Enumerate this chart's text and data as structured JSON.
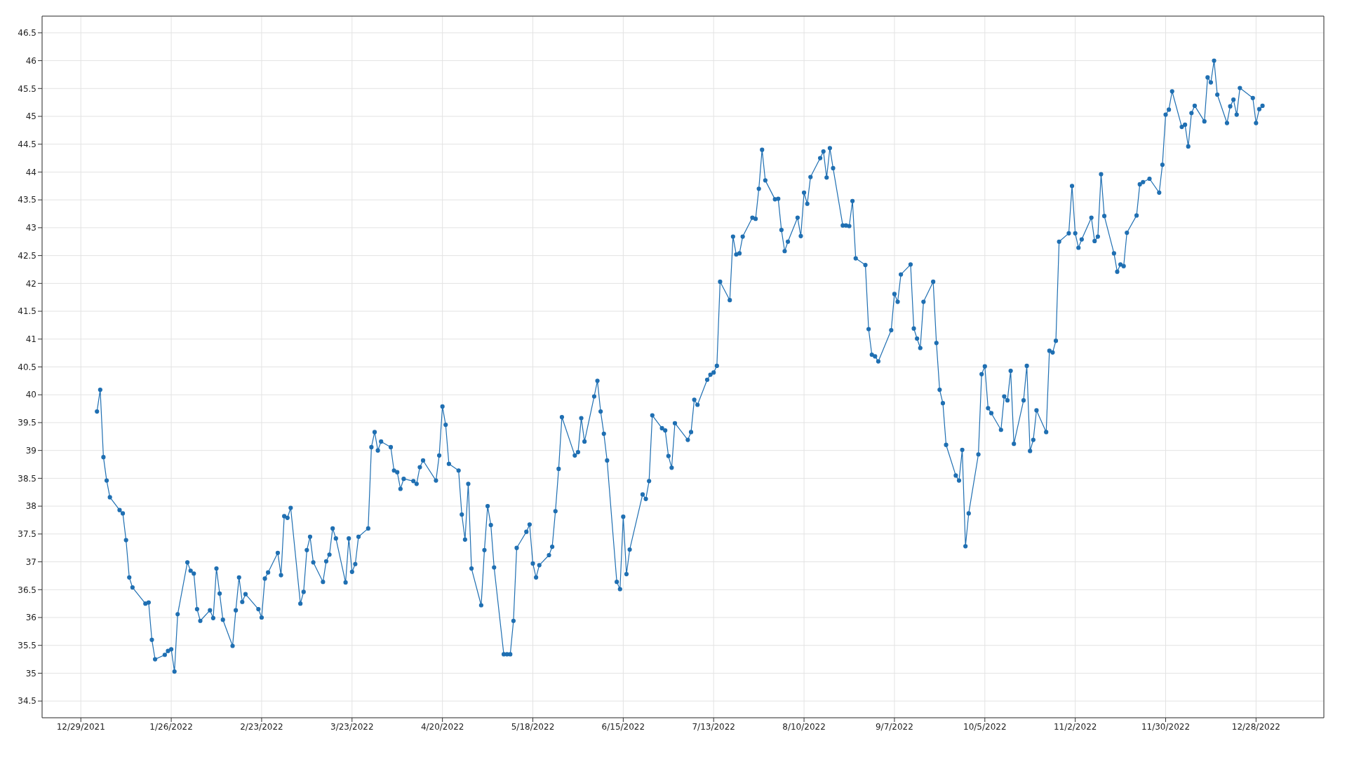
{
  "chart_data": {
    "type": "line",
    "x": [
      "2022-01-03",
      "2022-01-04",
      "2022-01-05",
      "2022-01-06",
      "2022-01-07",
      "2022-01-10",
      "2022-01-11",
      "2022-01-12",
      "2022-01-13",
      "2022-01-14",
      "2022-01-18",
      "2022-01-19",
      "2022-01-20",
      "2022-01-21",
      "2022-01-24",
      "2022-01-25",
      "2022-01-26",
      "2022-01-27",
      "2022-01-28",
      "2022-01-31",
      "2022-02-01",
      "2022-02-02",
      "2022-02-03",
      "2022-02-04",
      "2022-02-07",
      "2022-02-08",
      "2022-02-09",
      "2022-02-10",
      "2022-02-11",
      "2022-02-14",
      "2022-02-15",
      "2022-02-16",
      "2022-02-17",
      "2022-02-18",
      "2022-02-22",
      "2022-02-23",
      "2022-02-24",
      "2022-02-25",
      "2022-02-28",
      "2022-03-01",
      "2022-03-02",
      "2022-03-03",
      "2022-03-04",
      "2022-03-07",
      "2022-03-08",
      "2022-03-09",
      "2022-03-10",
      "2022-03-11",
      "2022-03-14",
      "2022-03-15",
      "2022-03-16",
      "2022-03-17",
      "2022-03-18",
      "2022-03-21",
      "2022-03-22",
      "2022-03-23",
      "2022-03-24",
      "2022-03-25",
      "2022-03-28",
      "2022-03-29",
      "2022-03-30",
      "2022-03-31",
      "2022-04-01",
      "2022-04-04",
      "2022-04-05",
      "2022-04-06",
      "2022-04-07",
      "2022-04-08",
      "2022-04-11",
      "2022-04-12",
      "2022-04-13",
      "2022-04-14",
      "2022-04-18",
      "2022-04-19",
      "2022-04-20",
      "2022-04-21",
      "2022-04-22",
      "2022-04-25",
      "2022-04-26",
      "2022-04-27",
      "2022-04-28",
      "2022-04-29",
      "2022-05-02",
      "2022-05-03",
      "2022-05-04",
      "2022-05-05",
      "2022-05-06",
      "2022-05-09",
      "2022-05-10",
      "2022-05-11",
      "2022-05-12",
      "2022-05-13",
      "2022-05-16",
      "2022-05-17",
      "2022-05-18",
      "2022-05-19",
      "2022-05-20",
      "2022-05-23",
      "2022-05-24",
      "2022-05-25",
      "2022-05-26",
      "2022-05-27",
      "2022-05-31",
      "2022-06-01",
      "2022-06-02",
      "2022-06-03",
      "2022-06-06",
      "2022-06-07",
      "2022-06-08",
      "2022-06-09",
      "2022-06-10",
      "2022-06-13",
      "2022-06-14",
      "2022-06-15",
      "2022-06-16",
      "2022-06-17",
      "2022-06-21",
      "2022-06-22",
      "2022-06-23",
      "2022-06-24",
      "2022-06-27",
      "2022-06-28",
      "2022-06-29",
      "2022-06-30",
      "2022-07-01",
      "2022-07-05",
      "2022-07-06",
      "2022-07-07",
      "2022-07-08",
      "2022-07-11",
      "2022-07-12",
      "2022-07-13",
      "2022-07-14",
      "2022-07-15",
      "2022-07-18",
      "2022-07-19",
      "2022-07-20",
      "2022-07-21",
      "2022-07-22",
      "2022-07-25",
      "2022-07-26",
      "2022-07-27",
      "2022-07-28",
      "2022-07-29",
      "2022-08-01",
      "2022-08-02",
      "2022-08-03",
      "2022-08-04",
      "2022-08-05",
      "2022-08-08",
      "2022-08-09",
      "2022-08-10",
      "2022-08-11",
      "2022-08-12",
      "2022-08-15",
      "2022-08-16",
      "2022-08-17",
      "2022-08-18",
      "2022-08-19",
      "2022-08-22",
      "2022-08-23",
      "2022-08-24",
      "2022-08-25",
      "2022-08-26",
      "2022-08-29",
      "2022-08-30",
      "2022-08-31",
      "2022-09-01",
      "2022-09-02",
      "2022-09-06",
      "2022-09-07",
      "2022-09-08",
      "2022-09-09",
      "2022-09-12",
      "2022-09-13",
      "2022-09-14",
      "2022-09-15",
      "2022-09-16",
      "2022-09-19",
      "2022-09-20",
      "2022-09-21",
      "2022-09-22",
      "2022-09-23",
      "2022-09-26",
      "2022-09-27",
      "2022-09-28",
      "2022-09-29",
      "2022-09-30",
      "2022-10-03",
      "2022-10-04",
      "2022-10-05",
      "2022-10-06",
      "2022-10-07",
      "2022-10-10",
      "2022-10-11",
      "2022-10-12",
      "2022-10-13",
      "2022-10-14",
      "2022-10-17",
      "2022-10-18",
      "2022-10-19",
      "2022-10-20",
      "2022-10-21",
      "2022-10-24",
      "2022-10-25",
      "2022-10-26",
      "2022-10-27",
      "2022-10-28",
      "2022-10-31",
      "2022-11-01",
      "2022-11-02",
      "2022-11-03",
      "2022-11-04",
      "2022-11-07",
      "2022-11-08",
      "2022-11-09",
      "2022-11-10",
      "2022-11-11",
      "2022-11-14",
      "2022-11-15",
      "2022-11-16",
      "2022-11-17",
      "2022-11-18",
      "2022-11-21",
      "2022-11-22",
      "2022-11-23",
      "2022-11-25",
      "2022-11-28",
      "2022-11-29",
      "2022-11-30",
      "2022-12-01",
      "2022-12-02",
      "2022-12-05",
      "2022-12-06",
      "2022-12-07",
      "2022-12-08",
      "2022-12-09",
      "2022-12-12",
      "2022-12-13",
      "2022-12-14",
      "2022-12-15",
      "2022-12-16",
      "2022-12-19",
      "2022-12-20",
      "2022-12-21",
      "2022-12-22",
      "2022-12-23",
      "2022-12-27",
      "2022-12-28",
      "2022-12-29",
      "2022-12-30"
    ],
    "series": [
      {
        "color": "#1f6fb2",
        "values": [
          39.7,
          40.09,
          38.88,
          38.46,
          38.16,
          37.93,
          37.87,
          37.39,
          36.72,
          36.54,
          36.25,
          36.27,
          35.6,
          35.25,
          35.33,
          35.4,
          35.43,
          35.03,
          36.06,
          36.99,
          36.84,
          36.79,
          36.15,
          35.94,
          36.13,
          35.99,
          36.88,
          36.43,
          35.96,
          35.49,
          36.13,
          36.72,
          36.28,
          36.42,
          36.15,
          36.0,
          36.7,
          36.81,
          37.16,
          36.76,
          37.82,
          37.79,
          37.97,
          36.25,
          36.46,
          37.21,
          37.45,
          36.99,
          36.64,
          37.01,
          37.13,
          37.6,
          37.42,
          36.63,
          37.42,
          36.82,
          36.96,
          37.45,
          37.6,
          39.06,
          39.33,
          39.0,
          39.16,
          39.06,
          38.64,
          38.61,
          38.31,
          38.49,
          38.45,
          38.4,
          38.7,
          38.82,
          38.46,
          38.91,
          39.79,
          39.46,
          38.76,
          38.64,
          37.85,
          37.4,
          38.4,
          36.88,
          36.22,
          37.21,
          38.0,
          37.66,
          36.9,
          35.34,
          35.34,
          35.34,
          35.94,
          37.25,
          37.54,
          37.67,
          36.97,
          36.72,
          36.94,
          37.12,
          37.27,
          37.91,
          38.67,
          39.6,
          38.91,
          38.97,
          39.58,
          39.16,
          39.97,
          40.25,
          39.7,
          39.3,
          38.82,
          36.64,
          36.51,
          37.81,
          36.78,
          37.22,
          38.21,
          38.13,
          38.45,
          39.63,
          39.4,
          39.36,
          38.9,
          38.69,
          39.49,
          39.19,
          39.33,
          39.91,
          39.82,
          40.27,
          40.36,
          40.4,
          40.52,
          42.03,
          41.7,
          42.84,
          42.52,
          42.54,
          42.84,
          43.18,
          43.16,
          43.7,
          44.4,
          43.85,
          43.51,
          43.52,
          42.96,
          42.58,
          42.75,
          43.18,
          42.85,
          43.63,
          43.43,
          43.91,
          44.25,
          44.37,
          43.9,
          44.43,
          44.07,
          43.04,
          43.04,
          43.03,
          43.48,
          42.45,
          42.33,
          41.18,
          40.72,
          40.69,
          40.6,
          41.16,
          41.81,
          41.67,
          42.16,
          42.34,
          41.19,
          41.01,
          40.84,
          41.67,
          42.03,
          40.93,
          40.09,
          39.85,
          39.1,
          38.55,
          38.46,
          39.01,
          37.28,
          37.87,
          38.93,
          40.37,
          40.51,
          39.76,
          39.67,
          39.37,
          39.97,
          39.9,
          40.43,
          39.12,
          39.9,
          40.52,
          38.99,
          39.19,
          39.72,
          39.33,
          40.79,
          40.76,
          40.97,
          42.75,
          42.9,
          43.75,
          42.9,
          42.64,
          42.79,
          43.18,
          42.76,
          42.84,
          43.96,
          43.21,
          42.54,
          42.21,
          42.34,
          42.31,
          42.91,
          43.22,
          43.78,
          43.82,
          43.88,
          43.63,
          44.13,
          45.03,
          45.12,
          45.45,
          44.81,
          44.85,
          44.46,
          45.06,
          45.19,
          44.91,
          45.7,
          45.61,
          46.0,
          45.39,
          44.88,
          45.18,
          45.3,
          45.03,
          45.51,
          45.33,
          44.88,
          45.13,
          45.19
        ]
      }
    ],
    "xlim": [
      "2021-12-17",
      "2023-01-18"
    ],
    "xticks": [
      {
        "value": "2021-12-29",
        "label": "12/29/2021"
      },
      {
        "value": "2022-01-26",
        "label": "1/26/2022"
      },
      {
        "value": "2022-02-23",
        "label": "2/23/2022"
      },
      {
        "value": "2022-03-23",
        "label": "3/23/2022"
      },
      {
        "value": "2022-04-20",
        "label": "4/20/2022"
      },
      {
        "value": "2022-05-18",
        "label": "5/18/2022"
      },
      {
        "value": "2022-06-15",
        "label": "6/15/2022"
      },
      {
        "value": "2022-07-13",
        "label": "7/13/2022"
      },
      {
        "value": "2022-08-10",
        "label": "8/10/2022"
      },
      {
        "value": "2022-09-07",
        "label": "9/7/2022"
      },
      {
        "value": "2022-10-05",
        "label": "10/5/2022"
      },
      {
        "value": "2022-11-02",
        "label": "11/2/2022"
      },
      {
        "value": "2022-11-30",
        "label": "11/30/2022"
      },
      {
        "value": "2022-12-28",
        "label": "12/28/2022"
      }
    ],
    "ylim": [
      34.2,
      46.8
    ],
    "yticks": [
      34.5,
      35,
      35.5,
      36,
      36.5,
      37,
      37.5,
      38,
      38.5,
      39,
      39.5,
      40,
      40.5,
      41,
      41.5,
      42,
      42.5,
      43,
      43.5,
      44,
      44.5,
      45,
      45.5,
      46,
      46.5
    ],
    "grid": true,
    "marker": "circle",
    "line_style": "solid"
  }
}
